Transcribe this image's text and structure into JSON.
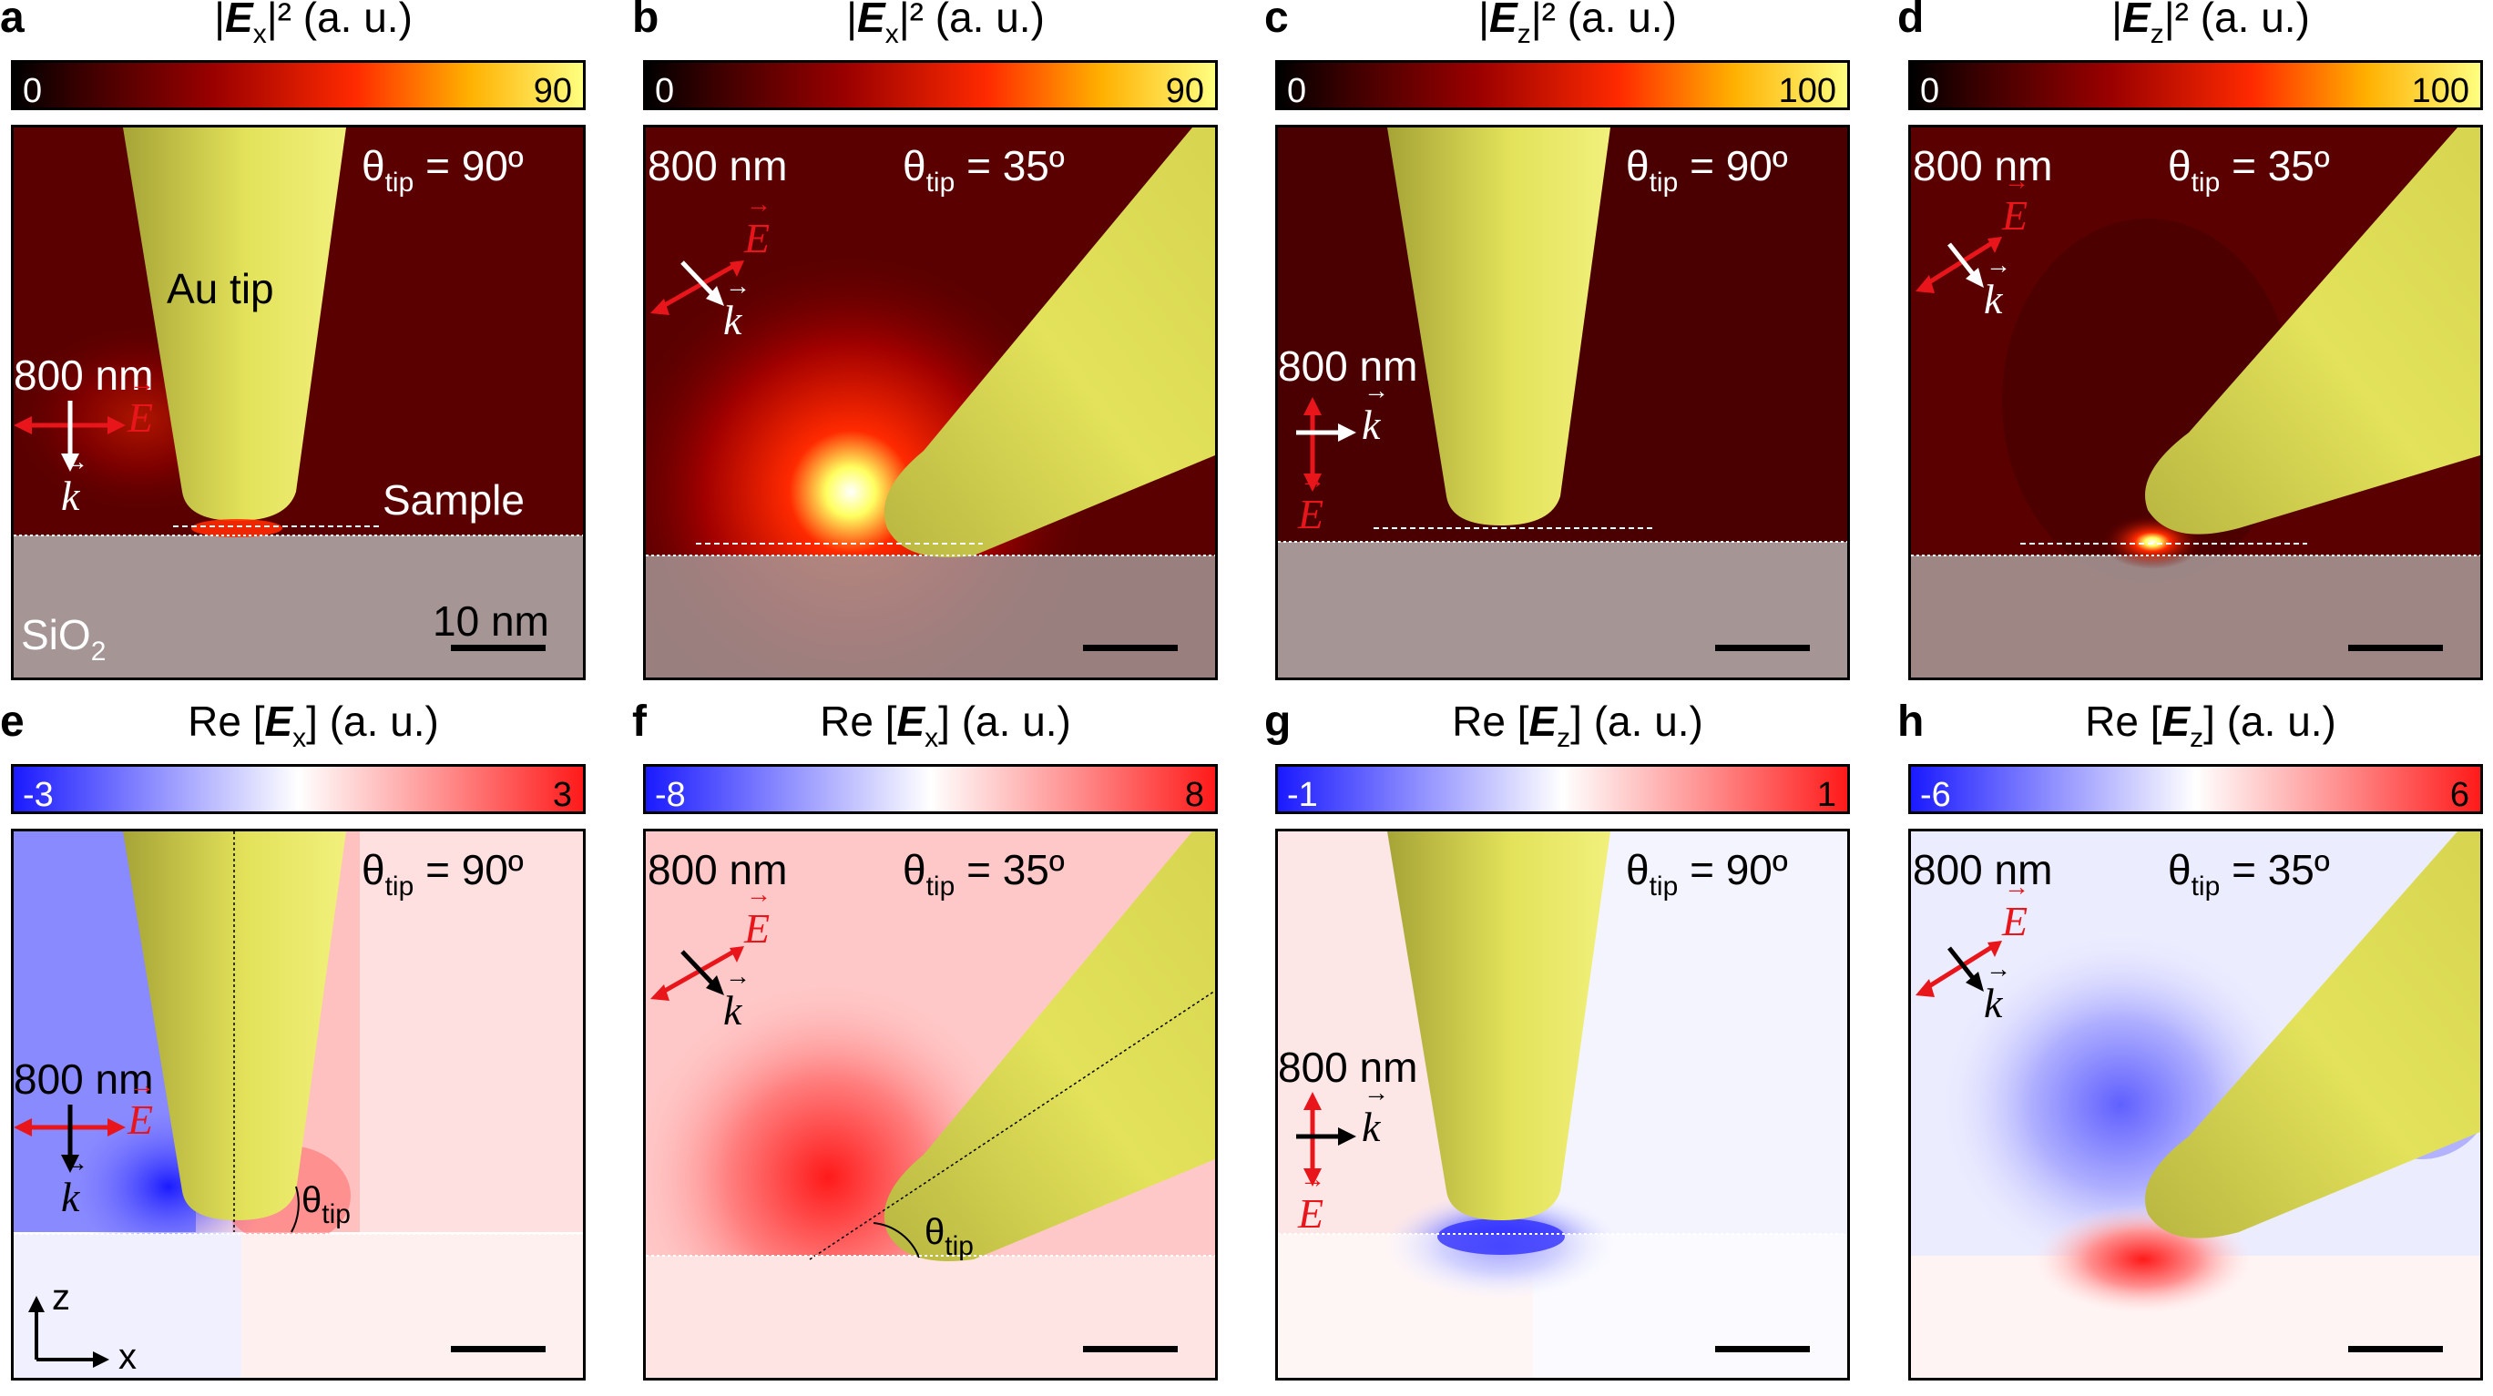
{
  "figure": {
    "panels": [
      {
        "id": "a",
        "title_prefix": "|",
        "title_var": "E",
        "title_sub": "x",
        "title_suffix": "|² (a. u.)",
        "cmin": "0",
        "cmax": "90",
        "theta_label": "θ",
        "theta_sub": "tip",
        "theta_value": "= 90º",
        "wavelength": "800 nm",
        "tip_label": "Au tip",
        "sample_label": "Sample",
        "substrate_label": "SiO",
        "substrate_sub": "2",
        "scalebar_label": "10 nm"
      },
      {
        "id": "b",
        "title_prefix": "|",
        "title_var": "E",
        "title_sub": "x",
        "title_suffix": "|² (a. u.)",
        "cmin": "0",
        "cmax": "90",
        "theta_label": "θ",
        "theta_sub": "tip",
        "theta_value": "= 35º",
        "wavelength": "800 nm"
      },
      {
        "id": "c",
        "title_prefix": "|",
        "title_var": "E",
        "title_sub": "z",
        "title_suffix": "|² (a. u.)",
        "cmin": "0",
        "cmax": "100",
        "theta_label": "θ",
        "theta_sub": "tip",
        "theta_value": "= 90º",
        "wavelength": "800 nm"
      },
      {
        "id": "d",
        "title_prefix": "|",
        "title_var": "E",
        "title_sub": "z",
        "title_suffix": "|² (a. u.)",
        "cmin": "0",
        "cmax": "100",
        "theta_label": "θ",
        "theta_sub": "tip",
        "theta_value": "= 35º",
        "wavelength": "800 nm"
      },
      {
        "id": "e",
        "title_prefix": "Re [",
        "title_var": "E",
        "title_sub": "x",
        "title_suffix": "] (a. u.)",
        "cmin": "-3",
        "cmax": "3",
        "theta_label": "θ",
        "theta_sub": "tip",
        "theta_value": "= 90º",
        "wavelength": "800 nm",
        "axis_z": "z",
        "axis_x": "x"
      },
      {
        "id": "f",
        "title_prefix": "Re [",
        "title_var": "E",
        "title_sub": "x",
        "title_suffix": "] (a. u.)",
        "cmin": "-8",
        "cmax": "8",
        "theta_label": "θ",
        "theta_sub": "tip",
        "theta_value": "= 35º",
        "wavelength": "800 nm"
      },
      {
        "id": "g",
        "title_prefix": "Re [",
        "title_var": "E",
        "title_sub": "z",
        "title_suffix": "] (a. u.)",
        "cmin": "-1",
        "cmax": "1",
        "theta_label": "θ",
        "theta_sub": "tip",
        "theta_value": "= 90º",
        "wavelength": "800 nm"
      },
      {
        "id": "h",
        "title_prefix": "Re [",
        "title_var": "E",
        "title_sub": "z",
        "title_suffix": "] (a. u.)",
        "cmin": "-6",
        "cmax": "6",
        "theta_label": "θ",
        "theta_sub": "tip",
        "theta_value": "= 35º",
        "wavelength": "800 nm"
      }
    ],
    "vector_E": "E",
    "vector_k": "k",
    "colors": {
      "heat_dark": "#5a0000",
      "tip": "#e6e460",
      "substrate": "#a59594",
      "pol_red": "#e8161b",
      "diverge_blue": "#1a1aff",
      "diverge_red": "#ff1a1a"
    }
  }
}
